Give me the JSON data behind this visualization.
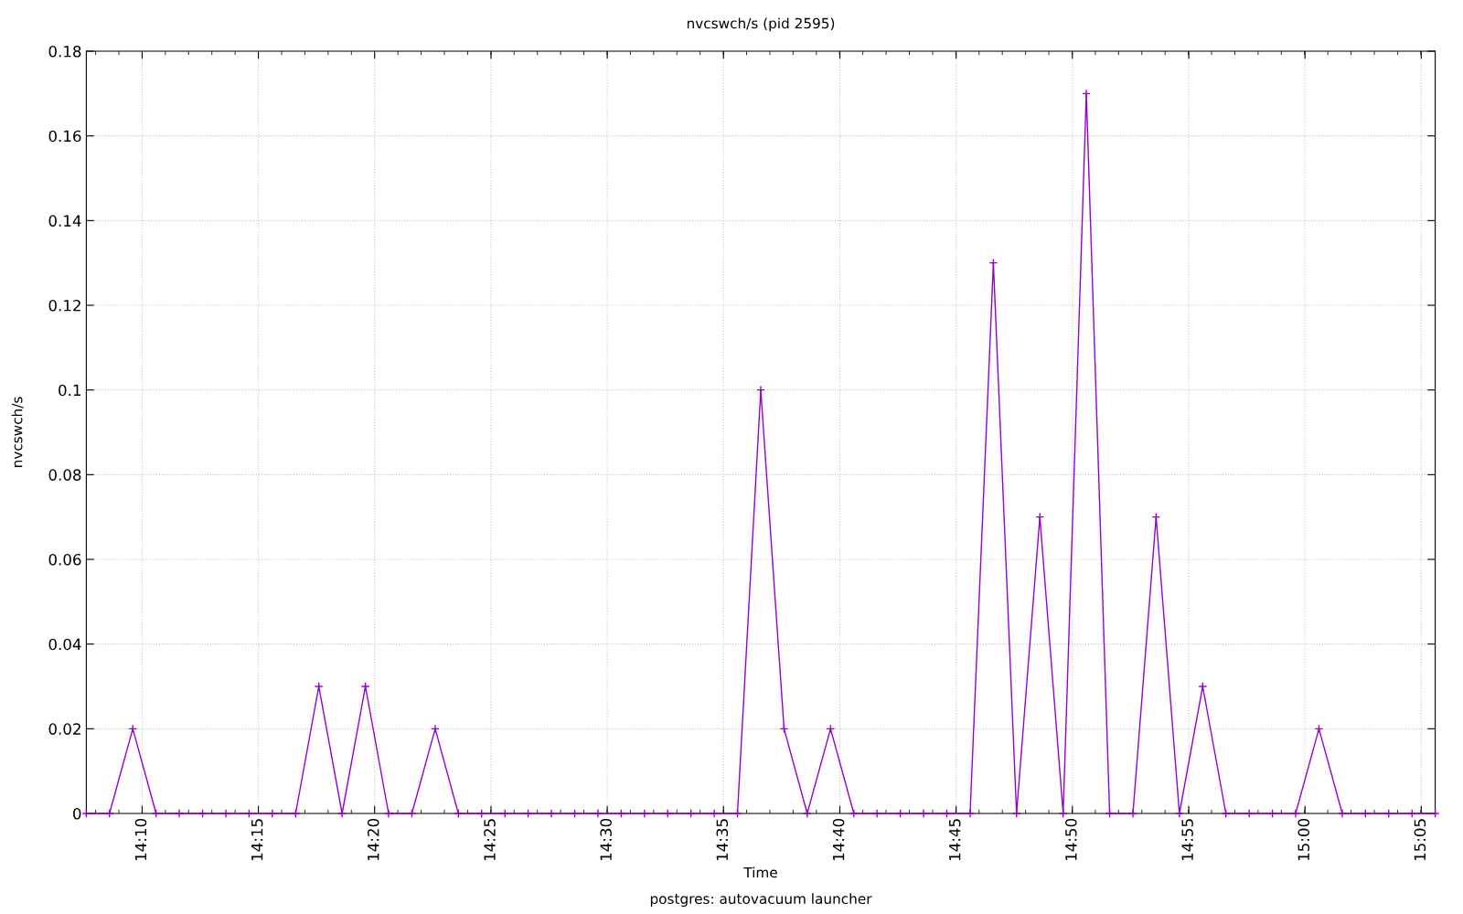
{
  "chart_data": {
    "type": "line",
    "title": "nvcswch/s (pid 2595)",
    "xlabel": "Time",
    "ylabel": "nvcswch/s",
    "annotations": [
      "postgres: autovacuum launcher"
    ],
    "x": [
      14.1267,
      14.1433,
      14.16,
      14.1767,
      14.1933,
      14.21,
      14.2267,
      14.2433,
      14.26,
      14.2767,
      14.2933,
      14.31,
      14.3267,
      14.3433,
      14.36,
      14.3767,
      14.3933,
      14.41,
      14.4267,
      14.4433,
      14.46,
      14.4767,
      14.4933,
      14.51,
      14.5267,
      14.5433,
      14.56,
      14.5767,
      14.5933,
      14.61,
      14.6267,
      14.6433,
      14.66,
      14.6767,
      14.6933,
      14.71,
      14.7267,
      14.7433,
      14.76,
      14.7767,
      14.7933,
      14.81,
      14.8267,
      14.8433,
      14.86,
      14.8767,
      14.8933,
      14.91,
      14.9267,
      14.9433,
      14.96,
      14.9767,
      14.9933,
      15.01,
      15.0267,
      15.0433,
      15.06,
      15.0767,
      15.0933
    ],
    "series": [
      {
        "color": "#9400d3",
        "values": [
          0,
          0,
          0.02,
          0,
          0,
          0,
          0,
          0,
          0,
          0,
          0.03,
          0,
          0.03,
          0,
          0,
          0.02,
          0,
          0,
          0,
          0,
          0,
          0,
          0,
          0,
          0,
          0,
          0,
          0,
          0,
          0.1,
          0.02,
          0,
          0.02,
          0,
          0,
          0,
          0,
          0,
          0,
          0.13,
          0,
          0.07,
          0,
          0.17,
          0,
          0,
          0.07,
          0,
          0.03,
          0,
          0,
          0,
          0,
          0.02,
          0,
          0,
          0,
          0,
          0
        ]
      }
    ],
    "xlim": [
      14.1267,
      15.0933
    ],
    "xticks": [
      {
        "value": 14.1667,
        "label": "14:10"
      },
      {
        "value": 14.25,
        "label": "14:15"
      },
      {
        "value": 14.3333,
        "label": "14:20"
      },
      {
        "value": 14.4167,
        "label": "14:25"
      },
      {
        "value": 14.5,
        "label": "14:30"
      },
      {
        "value": 14.5833,
        "label": "14:35"
      },
      {
        "value": 14.6667,
        "label": "14:40"
      },
      {
        "value": 14.75,
        "label": "14:45"
      },
      {
        "value": 14.8333,
        "label": "14:50"
      },
      {
        "value": 14.9167,
        "label": "14:55"
      },
      {
        "value": 15,
        "label": "15:00"
      },
      {
        "value": 15.0833,
        "label": "15:05"
      }
    ],
    "ylim": [
      0,
      0.18
    ],
    "yticks": [
      0,
      0.02,
      0.04,
      0.06,
      0.08,
      0.1,
      0.12,
      0.14,
      0.16,
      0.18
    ],
    "grid": true,
    "marker": "cross",
    "line_style": "solid"
  }
}
